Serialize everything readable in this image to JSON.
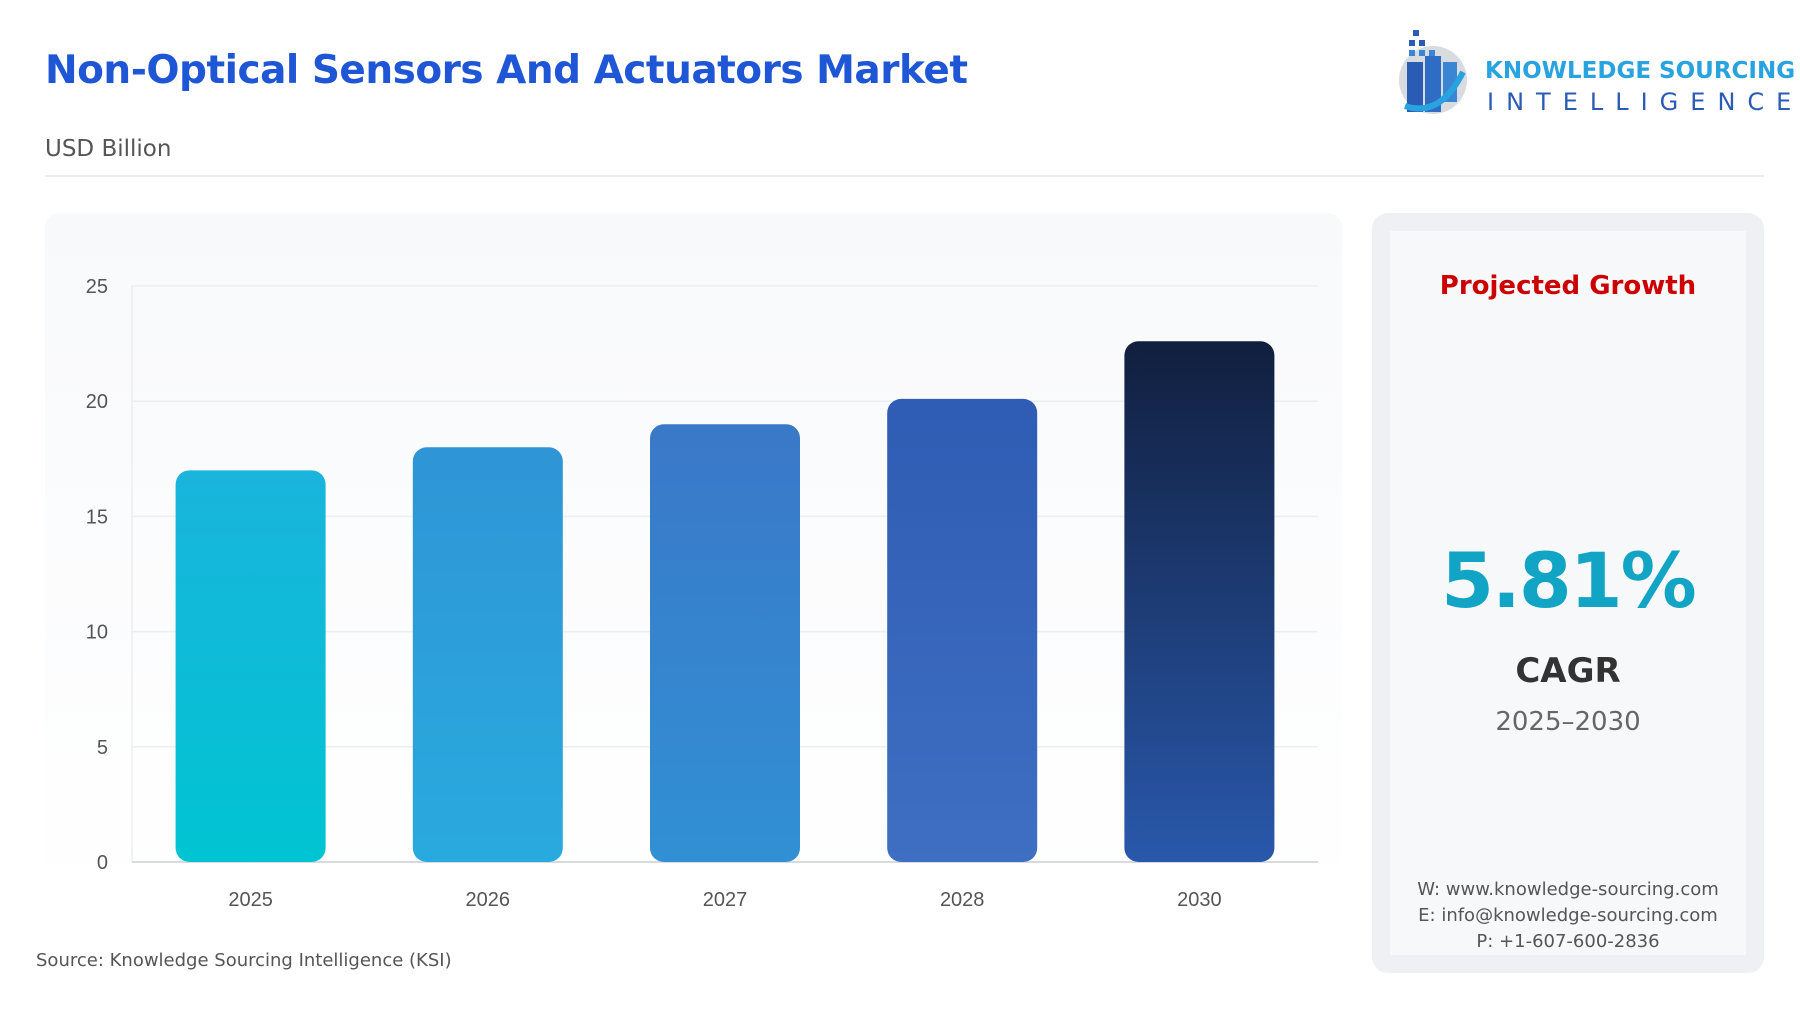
{
  "header": {
    "title": "Non-Optical Sensors And Actuators Market",
    "subtitle": "USD Billion"
  },
  "logo": {
    "line1": "KNOWLEDGE SOURCING",
    "line2": "INTELLIGENCE"
  },
  "chart_data": {
    "type": "bar",
    "categories": [
      "2025",
      "2026",
      "2027",
      "2028",
      "2030"
    ],
    "values": [
      17.0,
      18.0,
      19.0,
      20.1,
      22.6
    ],
    "ylim": [
      0,
      25
    ],
    "yticks": [
      0,
      5,
      10,
      15,
      20,
      25
    ],
    "grid": true,
    "colors": [
      "#0cc0d4",
      "#2aa6dc",
      "#3382cc",
      "#3463bb",
      "#142448"
    ]
  },
  "side": {
    "heading": "Projected Growth",
    "cagr_value": "5.81%",
    "cagr_label": "CAGR",
    "period": "2025–2030",
    "website": "W: www.knowledge-sourcing.com",
    "email": "E: info@knowledge-sourcing.com",
    "phone": "P: +1-607-600-2836"
  },
  "source": "Source: Knowledge Sourcing Intelligence (KSI)"
}
